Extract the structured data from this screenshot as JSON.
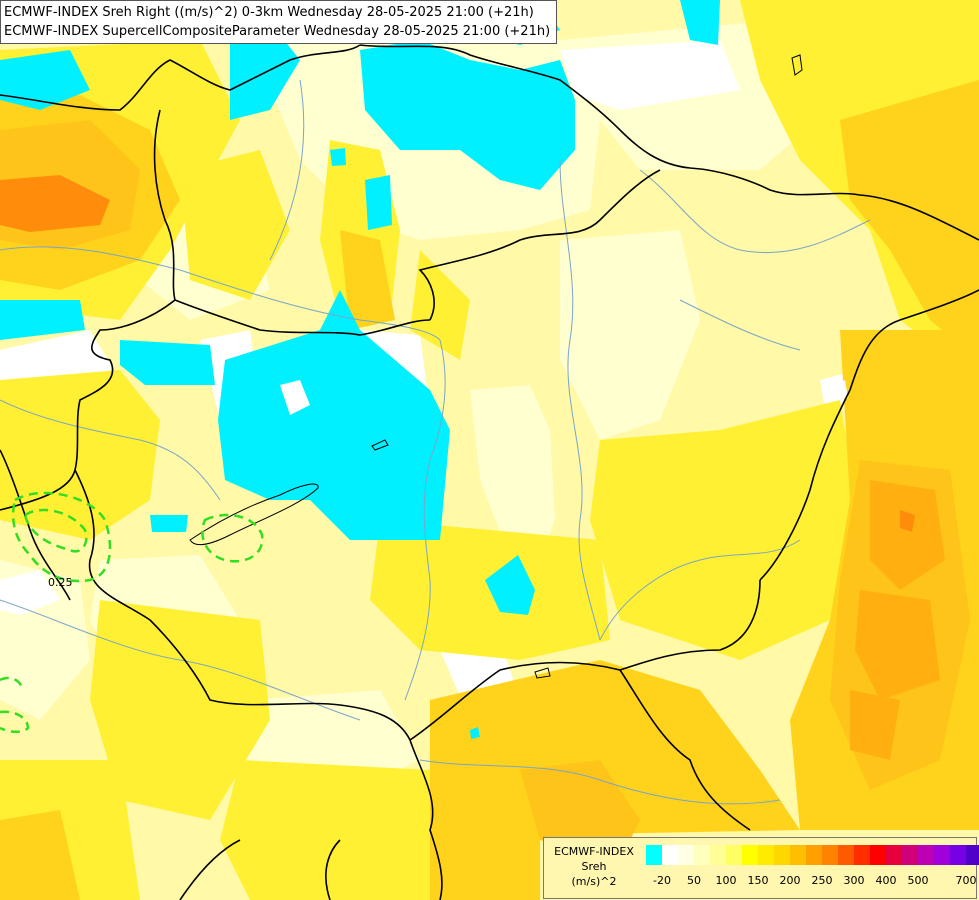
{
  "header": {
    "line1": "ECMWF-INDEX Sreh Right ((m/s)^2) 0-3km Wednesday 28-05-2025 21:00 (+21h)",
    "line2": "ECMWF-INDEX SupercellCompositeParameter Wednesday 28-05-2025 21:00 (+21h)"
  },
  "map": {
    "contour_label": "0.25",
    "colors": {
      "base": "#fff9a8",
      "pale": "#ffffd0",
      "yellow": "#fff033",
      "gold": "#ffd21c",
      "orange_light": "#ffc41a",
      "orange": "#ffb010",
      "orange_dark": "#ff8c0a",
      "cyan": "#00f0ff",
      "white": "#ffffff",
      "border": "#000000",
      "river": "#7aa6c8",
      "contour": "#33dd22"
    }
  },
  "legend": {
    "title_lines": [
      "ECMWF-INDEX",
      "Sreh",
      "(m/s)^2"
    ],
    "swatches": [
      "#00ffff",
      "#ffffff",
      "#ffffe6",
      "#ffffbe",
      "#ffff96",
      "#ffff64",
      "#ffff00",
      "#ffeb00",
      "#ffd700",
      "#ffbe00",
      "#ffa000",
      "#ff8200",
      "#ff5a00",
      "#ff2d00",
      "#ff0000",
      "#e6003c",
      "#d20078",
      "#be00b4",
      "#a000dc",
      "#7800e6",
      "#5000c8",
      "#2800a0",
      "#000080"
    ],
    "ticks": [
      "-20",
      "50",
      "100",
      "150",
      "200",
      "250",
      "300",
      "400",
      "500",
      "700"
    ]
  }
}
